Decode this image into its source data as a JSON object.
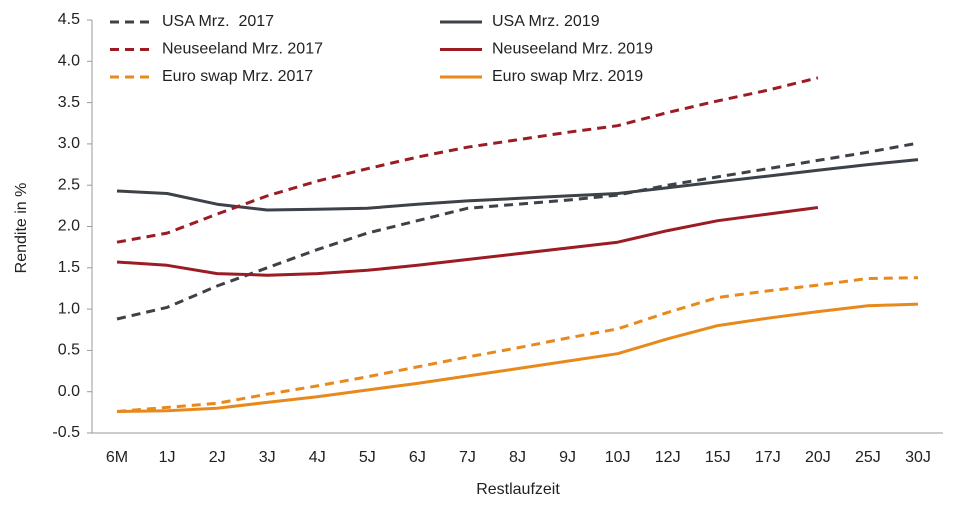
{
  "chart_data": {
    "type": "line",
    "y_label": "Rendite in %",
    "x_label": "Restlaufzeit",
    "categories": [
      "6M",
      "1J",
      "2J",
      "3J",
      "4J",
      "5J",
      "6J",
      "7J",
      "8J",
      "9J",
      "10J",
      "12J",
      "15J",
      "17J",
      "20J",
      "25J",
      "30J"
    ],
    "ylim": [
      -0.5,
      4.5
    ],
    "yticks": [
      4.5,
      {
        "value": 4,
        "label": "4.0"
      },
      3.5,
      {
        "value": 3,
        "label": "3.0"
      },
      2.5,
      {
        "value": 2,
        "label": "2.0"
      },
      1.5,
      {
        "value": 1,
        "label": "1.0"
      },
      0.5,
      {
        "value": 0,
        "label": "0.0"
      },
      -0.5
    ],
    "series": [
      {
        "name": "USA Mrz.  2017",
        "color": "#3d4148",
        "dashed": true,
        "values": [
          0.88,
          1.02,
          1.28,
          1.5,
          1.72,
          1.92,
          2.07,
          2.22,
          2.27,
          2.32,
          2.38,
          2.5,
          2.6,
          2.7,
          2.8,
          2.9,
          3.01
        ]
      },
      {
        "name": "USA Mrz. 2019",
        "color": "#3d4148",
        "dashed": false,
        "values": [
          2.43,
          2.4,
          2.27,
          2.2,
          2.21,
          2.22,
          2.27,
          2.31,
          2.34,
          2.37,
          2.4,
          2.47,
          2.54,
          2.61,
          2.68,
          2.75,
          2.81
        ]
      },
      {
        "name": "Neuseeland Mrz. 2017",
        "color": "#9b1c22",
        "dashed": true,
        "values": [
          1.81,
          1.92,
          2.15,
          2.37,
          2.55,
          2.7,
          2.84,
          2.96,
          3.05,
          3.14,
          3.22,
          3.38,
          3.52,
          3.65,
          3.8,
          null,
          null
        ]
      },
      {
        "name": "Neuseeland Mrz. 2019",
        "color": "#9b1c22",
        "dashed": false,
        "values": [
          1.57,
          1.53,
          1.43,
          1.41,
          1.43,
          1.47,
          1.53,
          1.6,
          1.67,
          1.74,
          1.81,
          1.95,
          2.07,
          2.15,
          2.23,
          null,
          null
        ]
      },
      {
        "name": "Euro swap Mrz. 2017",
        "color": "#e8891c",
        "dashed": true,
        "values": [
          -0.24,
          -0.19,
          -0.14,
          -0.03,
          0.07,
          0.18,
          0.3,
          0.42,
          0.53,
          0.65,
          0.76,
          0.96,
          1.14,
          1.22,
          1.29,
          1.37,
          1.38
        ]
      },
      {
        "name": "Euro swap Mrz. 2019",
        "color": "#e8891c",
        "dashed": false,
        "values": [
          -0.24,
          -0.23,
          -0.2,
          -0.13,
          -0.06,
          0.02,
          0.1,
          0.19,
          0.28,
          0.37,
          0.46,
          0.64,
          0.8,
          0.89,
          0.97,
          1.04,
          1.06
        ]
      }
    ]
  }
}
